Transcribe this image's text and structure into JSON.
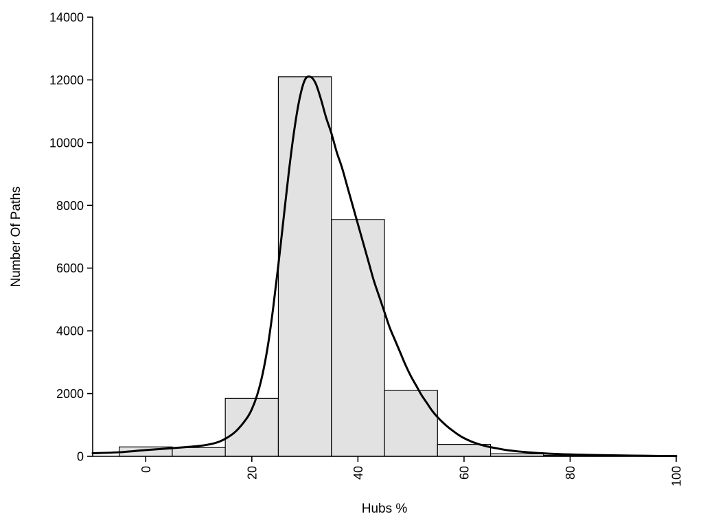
{
  "chart_data": {
    "type": "bar",
    "subtype": "histogram-with-density-curve",
    "xlabel": "Hubs %",
    "ylabel": "Number Of Paths",
    "xlim": [
      -10,
      100
    ],
    "ylim": [
      0,
      14000
    ],
    "x_ticks": [
      0,
      20,
      40,
      60,
      80,
      100
    ],
    "y_ticks": [
      0,
      2000,
      4000,
      6000,
      8000,
      10000,
      12000,
      14000
    ],
    "x_tick_labels_rotated": true,
    "grid": false,
    "legend": "none",
    "bar_fill": "#e2e2e2",
    "bar_stroke": "#000000",
    "curve_color": "#000000",
    "axis_color": "#000000",
    "bins": {
      "edges": [
        -5,
        5,
        15,
        25,
        35,
        45,
        55,
        65,
        75,
        85,
        95
      ],
      "counts": [
        300,
        280,
        1850,
        12100,
        7550,
        2100,
        380,
        80,
        30,
        10
      ]
    },
    "density_curve": [
      [
        -10,
        100
      ],
      [
        -5,
        130
      ],
      [
        0,
        200
      ],
      [
        5,
        260
      ],
      [
        10,
        330
      ],
      [
        13,
        420
      ],
      [
        15,
        560
      ],
      [
        17,
        800
      ],
      [
        19,
        1200
      ],
      [
        20,
        1500
      ],
      [
        21,
        1950
      ],
      [
        22,
        2600
      ],
      [
        23,
        3500
      ],
      [
        24,
        4700
      ],
      [
        25,
        6100
      ],
      [
        26,
        7600
      ],
      [
        27,
        9100
      ],
      [
        28,
        10400
      ],
      [
        29,
        11400
      ],
      [
        30,
        12000
      ],
      [
        31,
        12100
      ],
      [
        32,
        11900
      ],
      [
        33,
        11400
      ],
      [
        34,
        10800
      ],
      [
        35,
        10300
      ],
      [
        36,
        9700
      ],
      [
        37,
        9200
      ],
      [
        38,
        8600
      ],
      [
        39,
        8000
      ],
      [
        40,
        7400
      ],
      [
        41,
        6800
      ],
      [
        42,
        6200
      ],
      [
        43,
        5600
      ],
      [
        44,
        5100
      ],
      [
        45,
        4600
      ],
      [
        46,
        4100
      ],
      [
        47,
        3700
      ],
      [
        48,
        3300
      ],
      [
        49,
        2900
      ],
      [
        50,
        2550
      ],
      [
        51,
        2250
      ],
      [
        52,
        1950
      ],
      [
        53,
        1700
      ],
      [
        54,
        1450
      ],
      [
        55,
        1250
      ],
      [
        56,
        1080
      ],
      [
        57,
        930
      ],
      [
        58,
        800
      ],
      [
        59,
        680
      ],
      [
        60,
        580
      ],
      [
        62,
        430
      ],
      [
        64,
        330
      ],
      [
        66,
        260
      ],
      [
        68,
        200
      ],
      [
        70,
        160
      ],
      [
        72,
        130
      ],
      [
        74,
        105
      ],
      [
        76,
        85
      ],
      [
        78,
        70
      ],
      [
        80,
        60
      ],
      [
        84,
        45
      ],
      [
        88,
        32
      ],
      [
        92,
        22
      ],
      [
        96,
        14
      ],
      [
        100,
        8
      ]
    ]
  }
}
